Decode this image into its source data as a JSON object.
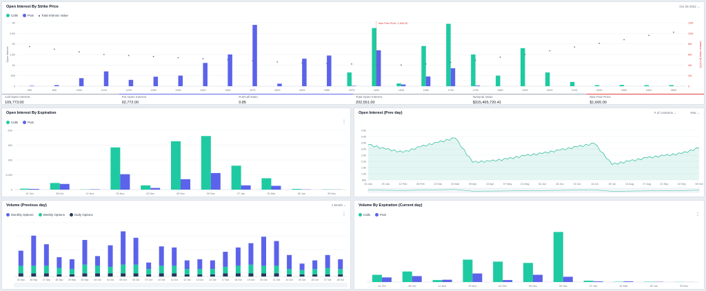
{
  "colors": {
    "calls": "#1fcaa2",
    "puts": "#5b63ea",
    "weekly": "#1fcaa2",
    "daily": "#25375e",
    "monthly": "#5b63ea",
    "max_pain": "#e03b3b",
    "total_value": "#6b7280",
    "area": "#1fb894"
  },
  "panels": {
    "oi_strike": {
      "title": "Open Interest By Strike Price",
      "date_label": "Oct 28 2022",
      "legend": {
        "calls": "Calls",
        "puts": "Puts",
        "total": "Total Intrinsic Value"
      },
      "max_pain_label": "Max Pain Price: 1,600.00",
      "left_axis": "Open Interest",
      "right_axis": "Intrinsic Value [In USD]"
    },
    "oi_expiry": {
      "title": "Open Interest By Expiration",
      "legend": {
        "calls": "Calls",
        "puts": "Puts"
      }
    },
    "oi_day": {
      "title": "Open Interest (Prev day)",
      "controls": {
        "select": "# of contracts",
        "range": "Year"
      }
    },
    "volume_prev": {
      "title": "Volume (Previous day)",
      "legend": {
        "monthly": "Monthly Options",
        "weekly": "Weekly Options",
        "daily": "Daily Options"
      },
      "range": "1 Month"
    },
    "volume_expiry": {
      "title": "Volume By Expiration (Current day)",
      "legend": {
        "calls": "Calls",
        "puts": "Puts"
      }
    }
  },
  "stats": [
    {
      "label": "Call Open Interest",
      "value": "109,773.00"
    },
    {
      "label": "Put Open Interest",
      "value": "92,772.00"
    },
    {
      "label": "Put/Call Ratio",
      "value": "0.85"
    },
    {
      "label": "Total Open Interest",
      "value": "202,551.00"
    },
    {
      "label": "Notional Value",
      "value": "$315,465,720.41"
    },
    {
      "label": "Max Pain Price",
      "value": "$1,600.00"
    }
  ],
  "chart_data": [
    {
      "type": "bar",
      "title": "Open Interest By Strike Price",
      "categories": [
        "500",
        "800",
        "1000",
        "1100",
        "1200",
        "1300",
        "1350",
        "1400",
        "1450",
        "1475",
        "1500",
        "1525",
        "1550",
        "1575",
        "1600",
        "1625",
        "1650",
        "1700",
        "1750",
        "1800",
        "1900",
        "2000",
        "2100",
        "2200",
        "2300",
        "2400",
        "2600"
      ],
      "series": [
        {
          "name": "Calls",
          "values": [
            0,
            0,
            0,
            0,
            0,
            0,
            0,
            0,
            0,
            0,
            0,
            0,
            0,
            0,
            0,
            0,
            0,
            0,
            0,
            0,
            0,
            0,
            0,
            0,
            0,
            0,
            0
          ]
        },
        {
          "name": "Puts",
          "values": [
            20,
            50,
            380,
            700,
            300,
            450,
            500,
            1100,
            1500,
            2900,
            120,
            1300,
            1450,
            20,
            1700,
            80,
            460,
            850,
            30,
            0,
            0,
            0,
            0,
            0,
            0,
            0,
            0
          ]
        }
      ],
      "calls_values": [
        0,
        0,
        0,
        0,
        0,
        0,
        0,
        0,
        0,
        0,
        0,
        0,
        0,
        650,
        2750,
        130,
        1900,
        2950,
        1500,
        500,
        1800,
        650,
        200,
        50,
        60,
        50,
        50
      ],
      "total_value": [
        7500000,
        7000000,
        6500000,
        6000000,
        5800000,
        5600000,
        5400000,
        5200000,
        5000000,
        4800000,
        4600000,
        4400000,
        4300000,
        4200000,
        4100000,
        4000000,
        4200000,
        4500000,
        4900000,
        5500000,
        6000000,
        6700000,
        7400000,
        8100000,
        8800000,
        9600000,
        10200000
      ],
      "ylim": [
        0,
        3000
      ],
      "yticks": [
        "0",
        "500",
        "1K",
        "1.5K",
        "2K",
        "2.5K",
        "3K"
      ],
      "yticks_right": [
        "0",
        "2M",
        "4M",
        "6M",
        "8M",
        "10M",
        "12M"
      ],
      "max_pain": "1600"
    },
    {
      "type": "bar",
      "title": "Open Interest By Expiration",
      "categories": [
        "14 Oct",
        "28 Oct",
        "11 Nov",
        "25 Nov",
        "02 Dec",
        "09 Dec",
        "30 Dec",
        "27 Jan",
        "31 Mar",
        "30 Jun",
        "29 Dec"
      ],
      "series": [
        {
          "name": "Calls",
          "values": [
            400,
            2800,
            100,
            17800,
            1800,
            20400,
            22600,
            10100,
            4800,
            300,
            100
          ]
        },
        {
          "name": "Puts",
          "values": [
            300,
            2400,
            150,
            6500,
            700,
            4400,
            7000,
            1800,
            1600,
            100,
            50
          ]
        }
      ],
      "ylim": [
        0,
        25000
      ],
      "yticks": [
        "0",
        "5,000",
        "10K",
        "15K",
        "20K"
      ]
    },
    {
      "type": "area",
      "title": "Open Interest (Prev day)",
      "x": [
        "15 Jan",
        "29 Jan",
        "12 Feb",
        "26 Feb",
        "12 Mar",
        "26 Mar",
        "09 Apr",
        "23 Apr",
        "07 May",
        "21 May",
        "04 Jun",
        "18 Jun",
        "02 Jul",
        "16 Jul",
        "30 Jul",
        "13 Aug",
        "27 Aug",
        "10 Sep",
        "24 Sep",
        "08 Oct"
      ],
      "y": [
        320000,
        280000,
        250000,
        300000,
        340000,
        380000,
        160000,
        170000,
        190000,
        220000,
        240000,
        270000,
        300000,
        330000,
        140000,
        170000,
        200000,
        220000,
        240000,
        290000
      ],
      "ylim": [
        0,
        450000
      ],
      "yticks": [
        "50k",
        "1.0k",
        "1.5k",
        "2.0k",
        "2.5k",
        "3.0k",
        "3.5k",
        "4.0k",
        "4.5k"
      ]
    },
    {
      "type": "bar",
      "title": "Volume (Previous day)",
      "categories": [
        "23 Sep",
        "26 Sep",
        "27 Sep",
        "28 Sep",
        "29 Sep",
        "30 Sep",
        "03 Oct",
        "04 Oct",
        "05 Oct",
        "06 Oct",
        "07 Oct",
        "10 Oct",
        "11 Oct",
        "12 Oct",
        "13 Oct",
        "14 Oct",
        "17 Oct",
        "18 Oct",
        "19 Oct",
        "20 Oct",
        "21 Oct",
        "24 Oct",
        "25 Oct",
        "26 Oct",
        "27 Oct",
        "28 Oct"
      ],
      "series": [
        {
          "name": "Monthly Options",
          "values": [
            1400,
            2800,
            2000,
            1000,
            900,
            2300,
            900,
            2000,
            3100,
            2500,
            600,
            1800,
            1700,
            800,
            900,
            800,
            1400,
            1700,
            2000,
            2700,
            2300,
            1300,
            600,
            800,
            1200,
            900
          ]
        },
        {
          "name": "Weekly Options",
          "values": [
            700,
            700,
            700,
            600,
            500,
            800,
            700,
            600,
            800,
            800,
            500,
            700,
            700,
            500,
            500,
            500,
            600,
            700,
            800,
            700,
            700,
            500,
            400,
            500,
            600,
            500
          ]
        },
        {
          "name": "Daily Options",
          "values": [
            300,
            300,
            300,
            200,
            200,
            300,
            300,
            300,
            300,
            300,
            200,
            300,
            300,
            200,
            200,
            200,
            300,
            300,
            300,
            300,
            300,
            200,
            200,
            200,
            200,
            200
          ]
        }
      ],
      "ylim": [
        0,
        5000
      ]
    },
    {
      "type": "bar",
      "title": "Volume By Expiration (Current day)",
      "categories": [
        "14 Oct",
        "28 Oct",
        "11 Nov",
        "25 Nov",
        "02 Dec",
        "09 Dec",
        "30 Dec",
        "27 Jan",
        "31 Mar",
        "30 Jun",
        "29 Dec"
      ],
      "series": [
        {
          "name": "Calls",
          "values": [
            1100,
            1600,
            300,
            3400,
            3100,
            2900,
            7600,
            200,
            50,
            50,
            20
          ]
        },
        {
          "name": "Puts",
          "values": [
            700,
            900,
            350,
            1300,
            300,
            1100,
            800,
            100,
            100,
            40,
            10
          ]
        }
      ],
      "ylim": [
        0,
        9000
      ]
    }
  ]
}
